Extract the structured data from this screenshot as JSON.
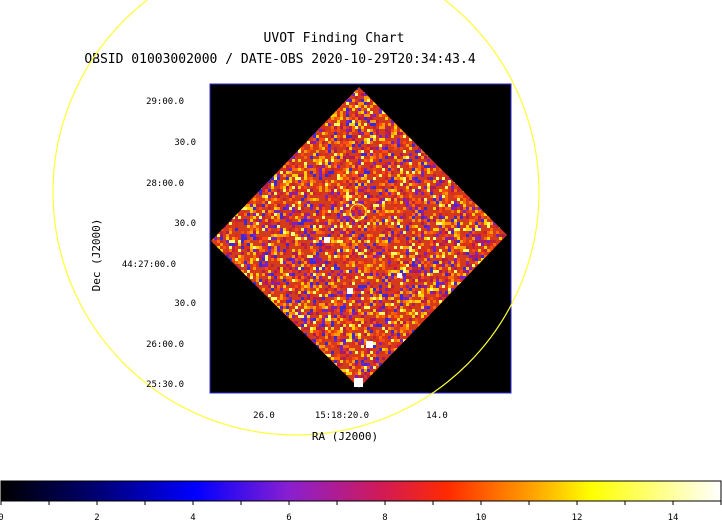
{
  "title": "UVOT Finding Chart",
  "subtitle": "OBSID 01003002000 / DATE-OBS 2020-10-29T20:34:43.4",
  "axes": {
    "y_label": "Dec (J2000)",
    "x_label": "RA (J2000)",
    "y_ticks": [
      "29:00.0",
      "30.0",
      "28:00.0",
      "30.0",
      "44:27:00.0",
      "30.0",
      "26:00.0",
      "25:30.0"
    ],
    "x_ticks": [
      "26.0",
      "15:18:20.0",
      "14.0"
    ]
  },
  "colorbar": {
    "labels": [
      "0",
      "2",
      "4",
      "6",
      "8",
      "10",
      "12",
      "14"
    ],
    "range": [
      0,
      15
    ]
  },
  "colors": {
    "frame": "#2b2bd6",
    "overlay_circle": "#ffff33",
    "background": "#000000"
  }
}
